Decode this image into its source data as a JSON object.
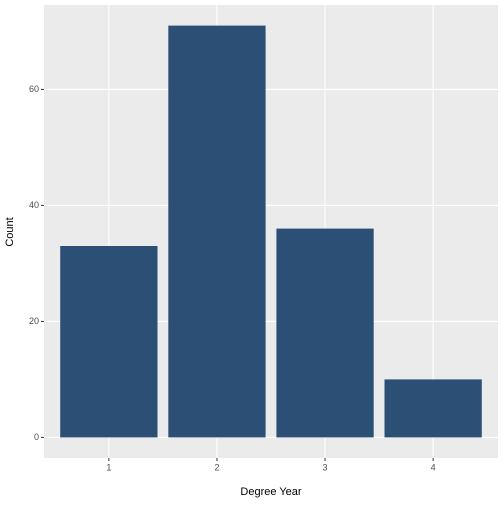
{
  "chart_data": {
    "type": "bar",
    "x_label": "Degree Year",
    "y_label": "Count",
    "categories": [
      "1",
      "2",
      "3",
      "4"
    ],
    "values": [
      33,
      71,
      36,
      10
    ],
    "color": "#2c4f75",
    "ylim": [
      -3.55,
      74.55
    ],
    "yticks": [
      0,
      20,
      40,
      60
    ],
    "grid": true
  }
}
